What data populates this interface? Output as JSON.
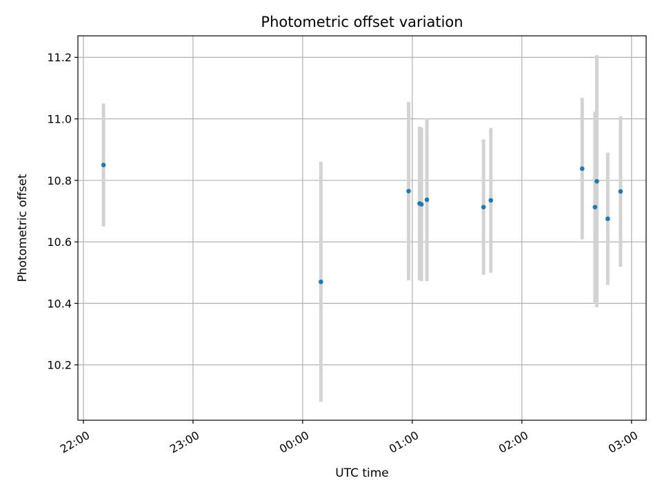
{
  "chart_data": {
    "type": "scatter",
    "title": "Photometric offset variation",
    "xlabel": "UTC time",
    "ylabel": "Photometric offset",
    "x_is_time": true,
    "xlim": [
      "21:57",
      "03:08"
    ],
    "ylim": [
      10.02,
      11.27
    ],
    "x_ticks": [
      "22:00",
      "23:00",
      "00:00",
      "01:00",
      "02:00",
      "03:00"
    ],
    "y_ticks": [
      10.2,
      10.4,
      10.6,
      10.8,
      11.0,
      11.2
    ],
    "grid": true,
    "colors": {
      "point": "#1f77b4",
      "errorbar": "#d3d3d3"
    },
    "points": [
      {
        "x": "22:11",
        "y": 10.85,
        "err": 0.2
      },
      {
        "x": "00:10",
        "y": 10.47,
        "err": 0.39
      },
      {
        "x": "00:58",
        "y": 10.765,
        "err": 0.29
      },
      {
        "x": "01:04",
        "y": 10.725,
        "err": 0.25
      },
      {
        "x": "01:05",
        "y": 10.722,
        "err": 0.25
      },
      {
        "x": "01:08",
        "y": 10.737,
        "err": 0.265
      },
      {
        "x": "01:39",
        "y": 10.713,
        "err": 0.22
      },
      {
        "x": "01:43",
        "y": 10.735,
        "err": 0.235
      },
      {
        "x": "02:33",
        "y": 10.838,
        "err": 0.23
      },
      {
        "x": "02:40",
        "y": 10.713,
        "err": 0.31
      },
      {
        "x": "02:41",
        "y": 10.797,
        "err": 0.41
      },
      {
        "x": "02:47",
        "y": 10.675,
        "err": 0.215
      },
      {
        "x": "02:54",
        "y": 10.764,
        "err": 0.245
      }
    ]
  }
}
